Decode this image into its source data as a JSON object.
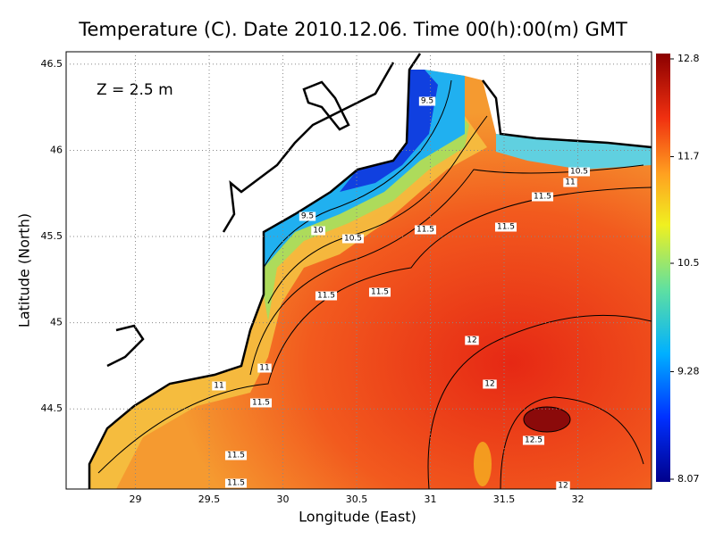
{
  "title": "Temperature (C). Date 2010.12.06. Time 00(h):00(m) GMT",
  "annotation": "Z = 2.5 m",
  "x_axis": {
    "label": "Longitude (East)",
    "lim": [
      28.53,
      32.5
    ],
    "ticks": [
      29,
      29.5,
      30,
      30.5,
      31,
      31.5,
      32
    ]
  },
  "y_axis": {
    "label": "Latitude (North)",
    "lim": [
      44.035,
      46.572
    ],
    "ticks": [
      44.5,
      45,
      45.5,
      46,
      46.5
    ]
  },
  "colorbar": {
    "lim": [
      8.07,
      12.8
    ],
    "ticks": [
      12.8,
      11.7,
      10.5,
      9.28,
      8.07
    ]
  },
  "contour_labels": [
    "9.5",
    "10.5",
    "11",
    "11.5",
    "9.5",
    "10",
    "10.5",
    "11.5",
    "11.5",
    "11.5",
    "11.5",
    "12",
    "11",
    "11",
    "11.5",
    "12",
    "12.5",
    "11.5",
    "11.5",
    "12"
  ]
}
